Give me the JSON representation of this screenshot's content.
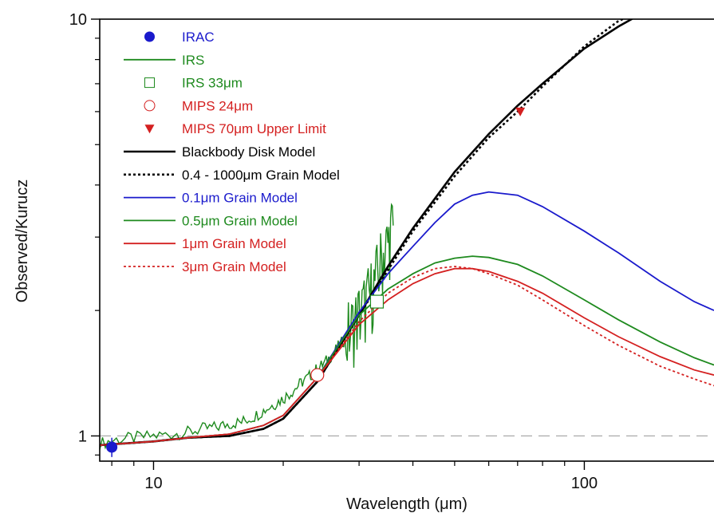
{
  "chart_data": {
    "type": "line",
    "xlabel": "Wavelength (μm)",
    "ylabel": "Observed/Kurucz",
    "xscale": "log",
    "yscale": "log",
    "xlim": [
      7.5,
      200
    ],
    "ylim": [
      0.87,
      10
    ],
    "xticks": [
      {
        "value": 10,
        "label": "10"
      },
      {
        "value": 100,
        "label": "100"
      }
    ],
    "yticks": [
      {
        "value": 1,
        "label": "1"
      },
      {
        "value": 10,
        "label": "10"
      }
    ],
    "reference_line": {
      "y": 1,
      "style": "dashed",
      "color": "#aaaaaa"
    },
    "legend_position": "top-left",
    "legend": [
      {
        "label": "IRAC",
        "color": "#1a1acc",
        "marker": "filled-circle"
      },
      {
        "label": "IRS",
        "color": "#1e8a1e",
        "marker": "line"
      },
      {
        "label": "IRS 33μm",
        "color": "#1e8a1e",
        "marker": "open-square"
      },
      {
        "label": "MIPS 24μm",
        "color": "#d42020",
        "marker": "open-circle"
      },
      {
        "label": "MIPS 70μm Upper Limit",
        "color": "#d42020",
        "marker": "filled-triangle-down"
      },
      {
        "label": "Blackbody Disk Model",
        "color": "#000000",
        "marker": "line"
      },
      {
        "label": "0.4 - 1000μm Grain Model",
        "color": "#000000",
        "marker": "dotted-line"
      },
      {
        "label": "0.1μm Grain Model",
        "color": "#1a1acc",
        "marker": "line"
      },
      {
        "label": "0.5μm Grain Model",
        "color": "#1e8a1e",
        "marker": "line"
      },
      {
        "label": "1μm Grain Model",
        "color": "#d42020",
        "marker": "line"
      },
      {
        "label": "3μm Grain Model",
        "color": "#d42020",
        "marker": "dotted-line"
      }
    ],
    "points": {
      "irac": {
        "x": 8.0,
        "y": 0.94,
        "yerr": [
          0.89,
          0.99
        ],
        "color": "#1a1acc"
      },
      "irs33": {
        "x": 33,
        "y": 2.1,
        "color": "#1e8a1e"
      },
      "mips24": {
        "x": 24,
        "y": 1.4,
        "color": "#d42020"
      },
      "mips70": {
        "x": 71,
        "y": 6.0,
        "color": "#d42020"
      }
    },
    "irs_spectrum": {
      "color": "#1e8a1e",
      "x": [
        7.5,
        8.2,
        9,
        10,
        11,
        12,
        13,
        14,
        15,
        16,
        17,
        18,
        19,
        20,
        21,
        22,
        23,
        24,
        25,
        26,
        27,
        28,
        29,
        30,
        31,
        32,
        33,
        34,
        35,
        36
      ],
      "y": [
        0.96,
        0.98,
        0.99,
        1.0,
        1.01,
        1.02,
        1.04,
        1.05,
        1.07,
        1.08,
        1.11,
        1.15,
        1.19,
        1.23,
        1.28,
        1.34,
        1.39,
        1.45,
        1.5,
        1.57,
        1.65,
        1.72,
        1.83,
        1.95,
        2.05,
        2.2,
        2.4,
        2.7,
        2.9,
        3.2
      ],
      "noise": "high scatter beyond 28 μm"
    },
    "series": [
      {
        "name": "Blackbody Disk Model",
        "color": "#000000",
        "style": "solid",
        "x": [
          7.5,
          10,
          12,
          15,
          18,
          20,
          24,
          30,
          35,
          40,
          50,
          60,
          70,
          80,
          100,
          120,
          140
        ],
        "y": [
          0.95,
          0.97,
          0.99,
          1.0,
          1.04,
          1.1,
          1.35,
          1.95,
          2.55,
          3.15,
          4.3,
          5.3,
          6.2,
          7.0,
          8.5,
          9.6,
          10.5
        ]
      },
      {
        "name": "0.4 - 1000μm Grain Model",
        "color": "#000000",
        "style": "dotted",
        "x": [
          7.5,
          10,
          12,
          15,
          18,
          20,
          24,
          30,
          35,
          40,
          50,
          60,
          70,
          80,
          100,
          120,
          140
        ],
        "y": [
          0.95,
          0.97,
          0.99,
          1.0,
          1.04,
          1.1,
          1.35,
          1.95,
          2.5,
          3.1,
          4.2,
          5.2,
          6.0,
          6.9,
          8.6,
          9.9,
          10.6
        ]
      },
      {
        "name": "0.1μm Grain Model",
        "color": "#1a1acc",
        "style": "solid",
        "x": [
          7.5,
          10,
          12,
          15,
          18,
          20,
          24,
          30,
          35,
          40,
          45,
          50,
          55,
          60,
          70,
          80,
          100,
          120,
          150,
          180,
          200
        ],
        "y": [
          0.95,
          0.97,
          0.99,
          1.01,
          1.06,
          1.12,
          1.38,
          1.98,
          2.45,
          2.85,
          3.25,
          3.6,
          3.78,
          3.85,
          3.78,
          3.55,
          3.1,
          2.75,
          2.35,
          2.1,
          2.0
        ]
      },
      {
        "name": "0.5μm Grain Model",
        "color": "#1e8a1e",
        "style": "solid",
        "x": [
          7.5,
          10,
          12,
          15,
          18,
          20,
          24,
          30,
          35,
          40,
          45,
          50,
          55,
          60,
          70,
          80,
          100,
          120,
          150,
          180,
          200
        ],
        "y": [
          0.95,
          0.97,
          0.99,
          1.01,
          1.06,
          1.12,
          1.38,
          1.95,
          2.25,
          2.45,
          2.6,
          2.67,
          2.7,
          2.68,
          2.58,
          2.42,
          2.12,
          1.9,
          1.68,
          1.54,
          1.48
        ]
      },
      {
        "name": "1μm Grain Model",
        "color": "#d42020",
        "style": "solid",
        "x": [
          7.5,
          10,
          12,
          15,
          18,
          20,
          24,
          30,
          35,
          40,
          45,
          50,
          55,
          60,
          70,
          80,
          100,
          120,
          150,
          180,
          200
        ],
        "y": [
          0.95,
          0.97,
          0.99,
          1.01,
          1.06,
          1.12,
          1.38,
          1.85,
          2.12,
          2.32,
          2.45,
          2.52,
          2.52,
          2.48,
          2.35,
          2.2,
          1.92,
          1.73,
          1.55,
          1.44,
          1.4
        ]
      },
      {
        "name": "3μm Grain Model",
        "color": "#d42020",
        "style": "dotted",
        "x": [
          7.5,
          10,
          12,
          15,
          18,
          20,
          24,
          30,
          35,
          40,
          45,
          50,
          55,
          60,
          70,
          80,
          100,
          120,
          150,
          180,
          200
        ],
        "y": [
          0.95,
          0.97,
          0.99,
          1.01,
          1.06,
          1.12,
          1.38,
          1.88,
          2.2,
          2.4,
          2.52,
          2.55,
          2.52,
          2.45,
          2.3,
          2.12,
          1.84,
          1.65,
          1.47,
          1.37,
          1.32
        ]
      }
    ]
  }
}
